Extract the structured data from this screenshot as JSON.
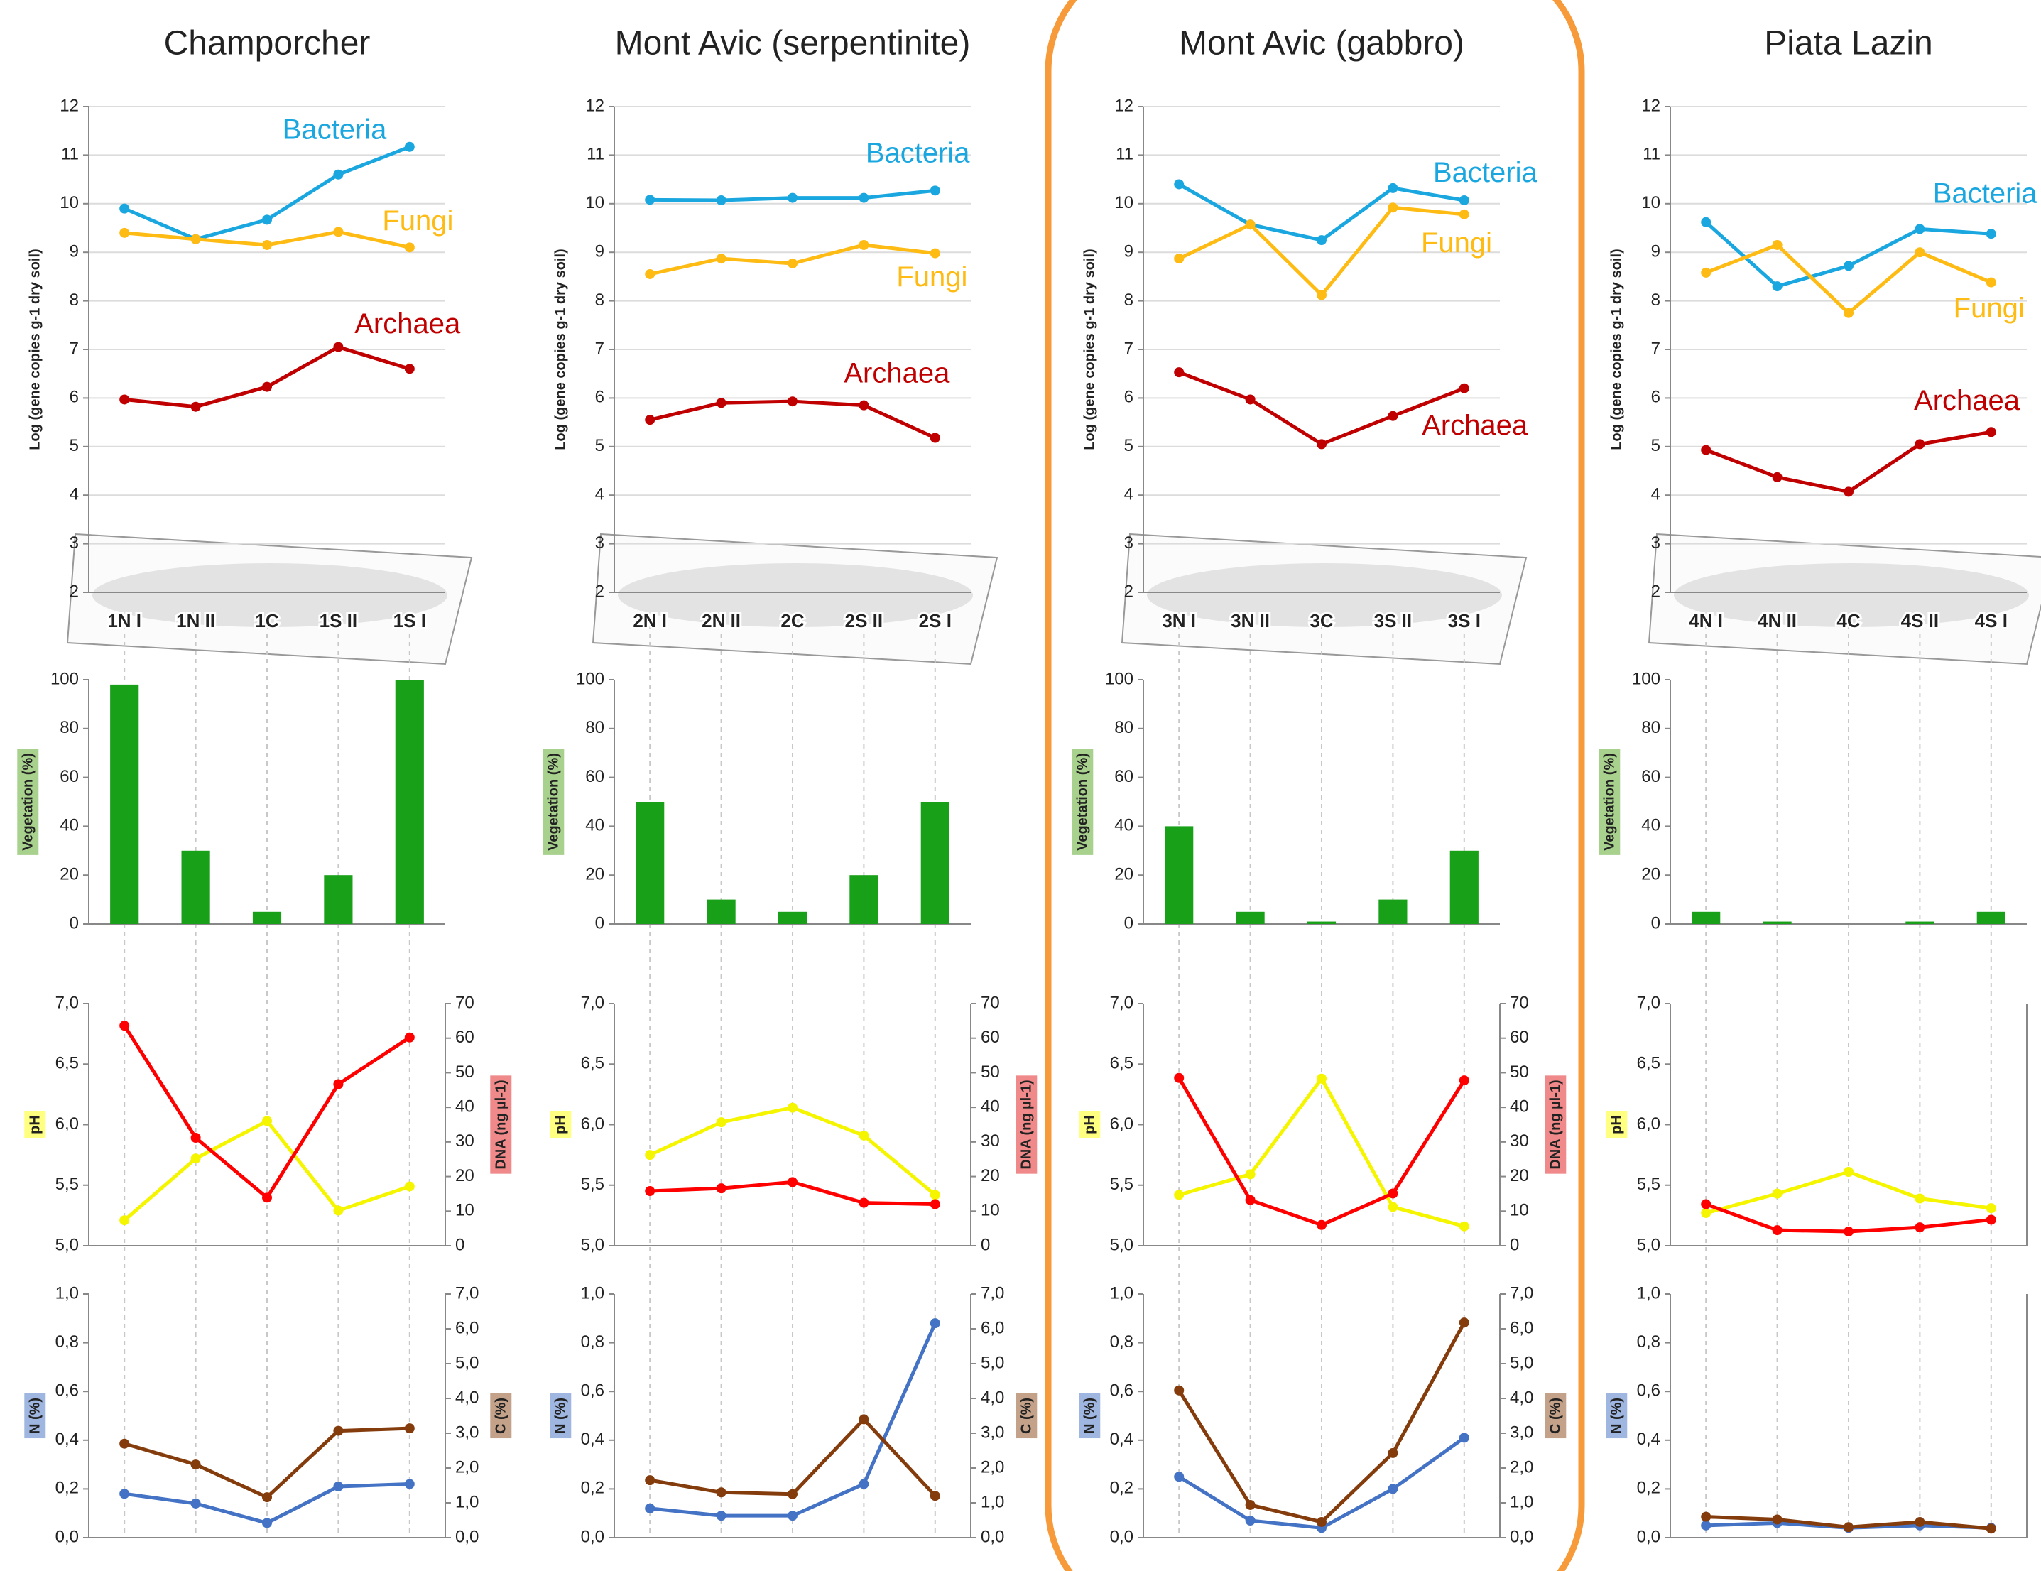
{
  "chart_data": [
    {
      "type": "line",
      "title": "Champorcher",
      "ylabel": "Log (gene copies g-1 dry soil)",
      "categories": [
        "1N I",
        "1N II",
        "1C",
        "1S II",
        "1S I"
      ],
      "ylim": [
        2,
        12
      ],
      "yticks": [
        2,
        3,
        4,
        5,
        6,
        7,
        8,
        9,
        10,
        11,
        12
      ],
      "grid": true,
      "series": [
        {
          "name": "Bacteria",
          "color": "#1aa7e0",
          "values": [
            9.9,
            9.27,
            9.67,
            10.6,
            11.17
          ]
        },
        {
          "name": "Fungi",
          "color": "#fdbb14",
          "values": [
            9.4,
            9.27,
            9.15,
            9.42,
            9.1
          ]
        },
        {
          "name": "Archaea",
          "color": "#c00000",
          "values": [
            5.97,
            5.82,
            6.23,
            7.05,
            6.6
          ]
        }
      ]
    },
    {
      "type": "bar",
      "ylabel": "Vegetation (%)",
      "color": "#18a018",
      "values": [
        98,
        30,
        5,
        20,
        100
      ],
      "ylim": [
        0,
        100
      ],
      "yticks": [
        0,
        20,
        40,
        60,
        80,
        100
      ]
    },
    {
      "type": "dual-line",
      "ylim": [
        5,
        7
      ],
      "yticks": [
        {
          "value": 5,
          "label": "5,0"
        },
        {
          "value": 5.5,
          "label": "5,5"
        },
        {
          "value": 6,
          "label": "6,0"
        },
        {
          "value": 6.5,
          "label": "6,5"
        },
        {
          "value": 7,
          "label": "7,0"
        }
      ],
      "y2lim": [
        0,
        70
      ],
      "y2ticks": [
        0,
        10,
        20,
        30,
        40,
        50,
        60,
        70
      ],
      "series": [
        {
          "name": "pH",
          "color": "#f5f500",
          "values": [
            5.21,
            5.72,
            6.03,
            5.29,
            5.49
          ]
        },
        {
          "name": "DNA (ng µl-1)",
          "color": "#ff0000",
          "axis": "y2",
          "values": [
            63.6,
            31.2,
            13.9,
            46.7,
            60.2
          ]
        }
      ]
    },
    {
      "type": "dual-line",
      "ylim": [
        0,
        1
      ],
      "yticks": [
        {
          "value": 0,
          "label": "0,0"
        },
        {
          "value": 0.2,
          "label": "0,2"
        },
        {
          "value": 0.4,
          "label": "0,4"
        },
        {
          "value": 0.6,
          "label": "0,6"
        },
        {
          "value": 0.8,
          "label": "0,8"
        },
        {
          "value": 1,
          "label": "1,0"
        }
      ],
      "y2lim": [
        0,
        7
      ],
      "y2ticks": [
        {
          "value": 0,
          "label": "0,0"
        },
        {
          "value": 1,
          "label": "1,0"
        },
        {
          "value": 2,
          "label": "2,0"
        },
        {
          "value": 3,
          "label": "3,0"
        },
        {
          "value": 4,
          "label": "4,0"
        },
        {
          "value": 5,
          "label": "5,0"
        },
        {
          "value": 6,
          "label": "6,0"
        },
        {
          "value": 7,
          "label": "7,0"
        }
      ],
      "series": [
        {
          "name": "N (%)",
          "color": "#4472c4",
          "values": [
            0.18,
            0.14,
            0.06,
            0.21,
            0.22
          ]
        },
        {
          "name": "C (%)",
          "color": "#843c0c",
          "axis": "y2",
          "values": [
            2.7,
            2.1,
            1.16,
            3.07,
            3.14
          ]
        }
      ]
    },
    {
      "type": "line",
      "title": "Mont Avic (serpentinite)",
      "ylabel": "Log (gene copies g-1 dry soil)",
      "categories": [
        "2N I",
        "2N II",
        "2C",
        "2S II",
        "2S I"
      ],
      "ylim": [
        2,
        12
      ],
      "yticks": [
        2,
        3,
        4,
        5,
        6,
        7,
        8,
        9,
        10,
        11,
        12
      ],
      "grid": true,
      "series": [
        {
          "name": "Bacteria",
          "color": "#1aa7e0",
          "values": [
            10.08,
            10.07,
            10.12,
            10.12,
            10.27
          ]
        },
        {
          "name": "Fungi",
          "color": "#fdbb14",
          "values": [
            8.55,
            8.87,
            8.77,
            9.15,
            8.98
          ]
        },
        {
          "name": "Archaea",
          "color": "#c00000",
          "values": [
            5.55,
            5.9,
            5.93,
            5.85,
            5.18
          ]
        }
      ]
    },
    {
      "type": "bar",
      "ylabel": "Vegetation (%)",
      "color": "#18a018",
      "values": [
        50,
        10,
        5,
        20,
        50
      ],
      "ylim": [
        0,
        100
      ],
      "yticks": [
        0,
        20,
        40,
        60,
        80,
        100
      ]
    },
    {
      "type": "dual-line",
      "ylim": [
        5,
        7
      ],
      "yticks": [
        {
          "value": 5,
          "label": "5,0"
        },
        {
          "value": 5.5,
          "label": "5,5"
        },
        {
          "value": 6,
          "label": "6,0"
        },
        {
          "value": 6.5,
          "label": "6,5"
        },
        {
          "value": 7,
          "label": "7,0"
        }
      ],
      "y2lim": [
        0,
        70
      ],
      "y2ticks": [
        0,
        10,
        20,
        30,
        40,
        50,
        60,
        70
      ],
      "series": [
        {
          "name": "pH",
          "color": "#f5f500",
          "values": [
            5.75,
            6.02,
            6.14,
            5.91,
            5.42
          ]
        },
        {
          "name": "DNA (ng µl-1)",
          "color": "#ff0000",
          "axis": "y2",
          "values": [
            15.8,
            16.6,
            18.4,
            12.4,
            12.0
          ]
        }
      ]
    },
    {
      "type": "dual-line",
      "ylim": [
        0,
        1
      ],
      "yticks": [
        {
          "value": 0,
          "label": "0,0"
        },
        {
          "value": 0.2,
          "label": "0,2"
        },
        {
          "value": 0.4,
          "label": "0,4"
        },
        {
          "value": 0.6,
          "label": "0,6"
        },
        {
          "value": 0.8,
          "label": "0,8"
        },
        {
          "value": 1,
          "label": "1,0"
        }
      ],
      "y2lim": [
        0,
        7
      ],
      "y2ticks": [
        {
          "value": 0,
          "label": "0,0"
        },
        {
          "value": 1,
          "label": "1,0"
        },
        {
          "value": 2,
          "label": "2,0"
        },
        {
          "value": 3,
          "label": "3,0"
        },
        {
          "value": 4,
          "label": "4,0"
        },
        {
          "value": 5,
          "label": "5,0"
        },
        {
          "value": 6,
          "label": "6,0"
        },
        {
          "value": 7,
          "label": "7,0"
        }
      ],
      "series": [
        {
          "name": "N (%)",
          "color": "#4472c4",
          "values": [
            0.12,
            0.09,
            0.09,
            0.22,
            0.88
          ]
        },
        {
          "name": "C (%)",
          "color": "#843c0c",
          "axis": "y2",
          "values": [
            1.65,
            1.3,
            1.25,
            3.4,
            1.2
          ]
        }
      ]
    },
    {
      "type": "line",
      "title": "Mont Avic (gabbro)",
      "ylabel": "Log (gene copies g-1 dry soil)",
      "categories": [
        "3N I",
        "3N II",
        "3C",
        "3S II",
        "3S I"
      ],
      "ylim": [
        2,
        12
      ],
      "yticks": [
        2,
        3,
        4,
        5,
        6,
        7,
        8,
        9,
        10,
        11,
        12
      ],
      "grid": true,
      "series": [
        {
          "name": "Bacteria",
          "color": "#1aa7e0",
          "values": [
            10.4,
            9.57,
            9.25,
            10.32,
            10.07
          ]
        },
        {
          "name": "Fungi",
          "color": "#fdbb14",
          "values": [
            8.87,
            9.57,
            8.12,
            9.92,
            9.78
          ]
        },
        {
          "name": "Archaea",
          "color": "#c00000",
          "values": [
            6.53,
            5.97,
            5.05,
            5.63,
            6.2
          ]
        }
      ]
    },
    {
      "type": "bar",
      "ylabel": "Vegetation (%)",
      "color": "#18a018",
      "values": [
        40,
        5,
        1,
        10,
        30
      ],
      "ylim": [
        0,
        100
      ],
      "yticks": [
        0,
        20,
        40,
        60,
        80,
        100
      ]
    },
    {
      "type": "dual-line",
      "ylim": [
        5,
        7
      ],
      "yticks": [
        {
          "value": 5,
          "label": "5,0"
        },
        {
          "value": 5.5,
          "label": "5,5"
        },
        {
          "value": 6,
          "label": "6,0"
        },
        {
          "value": 6.5,
          "label": "6,5"
        },
        {
          "value": 7,
          "label": "7,0"
        }
      ],
      "y2lim": [
        0,
        70
      ],
      "y2ticks": [
        0,
        10,
        20,
        30,
        40,
        50,
        60,
        70
      ],
      "series": [
        {
          "name": "pH",
          "color": "#f5f500",
          "values": [
            5.42,
            5.59,
            6.38,
            5.32,
            5.16
          ]
        },
        {
          "name": "DNA (ng µl-1)",
          "color": "#ff0000",
          "axis": "y2",
          "values": [
            48.5,
            13.2,
            6.0,
            15.1,
            47.8
          ]
        }
      ]
    },
    {
      "type": "dual-line",
      "ylim": [
        0,
        1
      ],
      "yticks": [
        {
          "value": 0,
          "label": "0,0"
        },
        {
          "value": 0.2,
          "label": "0,2"
        },
        {
          "value": 0.4,
          "label": "0,4"
        },
        {
          "value": 0.6,
          "label": "0,6"
        },
        {
          "value": 0.8,
          "label": "0,8"
        },
        {
          "value": 1,
          "label": "1,0"
        }
      ],
      "y2lim": [
        0,
        7
      ],
      "y2ticks": [
        {
          "value": 0,
          "label": "0,0"
        },
        {
          "value": 1,
          "label": "1,0"
        },
        {
          "value": 2,
          "label": "2,0"
        },
        {
          "value": 3,
          "label": "3,0"
        },
        {
          "value": 4,
          "label": "4,0"
        },
        {
          "value": 5,
          "label": "5,0"
        },
        {
          "value": 6,
          "label": "6,0"
        },
        {
          "value": 7,
          "label": "7,0"
        }
      ],
      "series": [
        {
          "name": "N (%)",
          "color": "#4472c4",
          "values": [
            0.25,
            0.07,
            0.04,
            0.2,
            0.41
          ]
        },
        {
          "name": "C (%)",
          "color": "#843c0c",
          "axis": "y2",
          "values": [
            4.23,
            0.94,
            0.45,
            2.43,
            6.18
          ]
        }
      ]
    },
    {
      "type": "line",
      "title": "Piata Lazin",
      "ylabel": "Log (gene copies g-1 dry soil)",
      "categories": [
        "4N I",
        "4N II",
        "4C",
        "4S II",
        "4S I"
      ],
      "ylim": [
        2,
        12
      ],
      "yticks": [
        2,
        3,
        4,
        5,
        6,
        7,
        8,
        9,
        10,
        11,
        12
      ],
      "grid": true,
      "series": [
        {
          "name": "Bacteria",
          "color": "#1aa7e0",
          "values": [
            9.62,
            8.3,
            8.72,
            9.48,
            9.38
          ]
        },
        {
          "name": "Fungi",
          "color": "#fdbb14",
          "values": [
            8.58,
            9.15,
            7.75,
            9.0,
            8.38
          ]
        },
        {
          "name": "Archaea",
          "color": "#c00000",
          "values": [
            4.93,
            4.37,
            4.07,
            5.05,
            5.3
          ]
        }
      ]
    },
    {
      "type": "bar",
      "ylabel": "Vegetation (%)",
      "color": "#18a018",
      "values": [
        5,
        1,
        0,
        1,
        5
      ],
      "ylim": [
        0,
        100
      ],
      "yticks": [
        0,
        20,
        40,
        60,
        80,
        100
      ]
    },
    {
      "type": "dual-line",
      "ylim": [
        5,
        7
      ],
      "yticks": [
        {
          "value": 5,
          "label": "5,0"
        },
        {
          "value": 5.5,
          "label": "5,5"
        },
        {
          "value": 6,
          "label": "6,0"
        },
        {
          "value": 6.5,
          "label": "6,5"
        },
        {
          "value": 7,
          "label": "7,0"
        }
      ],
      "y2lim": [
        0,
        70
      ],
      "series": [
        {
          "name": "pH",
          "color": "#f5f500",
          "values": [
            5.27,
            5.43,
            5.61,
            5.39,
            5.31
          ]
        },
        {
          "color": "#ff0000",
          "axis": "y2",
          "values": [
            12.0,
            4.5,
            4.1,
            5.3,
            7.5
          ]
        }
      ]
    },
    {
      "type": "dual-line",
      "ylim": [
        0,
        1
      ],
      "yticks": [
        {
          "value": 0,
          "label": "0,0"
        },
        {
          "value": 0.2,
          "label": "0,2"
        },
        {
          "value": 0.4,
          "label": "0,4"
        },
        {
          "value": 0.6,
          "label": "0,6"
        },
        {
          "value": 0.8,
          "label": "0,8"
        },
        {
          "value": 1,
          "label": "1,0"
        }
      ],
      "y2lim": [
        0,
        7
      ],
      "series": [
        {
          "name": "N (%)",
          "color": "#4472c4",
          "values": [
            0.05,
            0.06,
            0.04,
            0.05,
            0.04
          ]
        },
        {
          "color": "#843c0c",
          "axis": "y2",
          "values": [
            0.6,
            0.52,
            0.3,
            0.45,
            0.26
          ]
        }
      ]
    }
  ]
}
